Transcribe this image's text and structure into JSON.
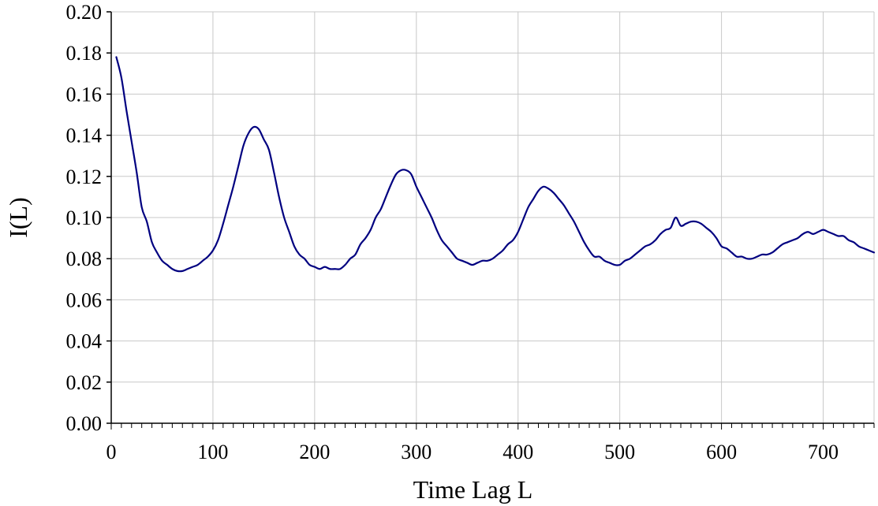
{
  "chart_data": {
    "type": "line",
    "title": "",
    "xlabel": "Time Lag L",
    "ylabel": "I(L)",
    "xlim": [
      0,
      750
    ],
    "ylim": [
      0.0,
      0.2
    ],
    "x_ticks": [
      0,
      100,
      200,
      300,
      400,
      500,
      600,
      700
    ],
    "x_tick_labels": [
      "0",
      "100",
      "200",
      "300",
      "400",
      "500",
      "600",
      "700"
    ],
    "x_minor_tick_step": 10,
    "y_ticks": [
      0.0,
      0.02,
      0.04,
      0.06,
      0.08,
      0.1,
      0.12,
      0.14,
      0.16,
      0.18,
      0.2
    ],
    "y_tick_labels": [
      "0.00",
      "0.02",
      "0.04",
      "0.06",
      "0.08",
      "0.10",
      "0.12",
      "0.14",
      "0.16",
      "0.18",
      "0.20"
    ],
    "grid": true,
    "legend": "none",
    "colors": {
      "series": "#000080",
      "grid": "#c8c8c8",
      "axis": "#000000"
    },
    "series": [
      {
        "x": [
          5,
          10,
          15,
          20,
          25,
          30,
          35,
          40,
          45,
          50,
          55,
          60,
          65,
          70,
          75,
          80,
          85,
          90,
          95,
          100,
          105,
          110,
          115,
          120,
          125,
          130,
          135,
          140,
          145,
          150,
          155,
          160,
          165,
          170,
          175,
          180,
          185,
          190,
          195,
          200,
          205,
          210,
          215,
          220,
          225,
          230,
          235,
          240,
          245,
          250,
          255,
          260,
          265,
          270,
          275,
          280,
          285,
          290,
          295,
          300,
          305,
          310,
          315,
          320,
          325,
          330,
          335,
          340,
          345,
          350,
          355,
          360,
          365,
          370,
          375,
          380,
          385,
          390,
          395,
          400,
          405,
          410,
          415,
          420,
          425,
          430,
          435,
          440,
          445,
          450,
          455,
          460,
          465,
          470,
          475,
          480,
          485,
          490,
          495,
          500,
          505,
          510,
          515,
          520,
          525,
          530,
          535,
          540,
          545,
          550,
          555,
          560,
          565,
          570,
          575,
          580,
          585,
          590,
          595,
          600,
          605,
          610,
          615,
          620,
          625,
          630,
          635,
          640,
          645,
          650,
          655,
          660,
          665,
          670,
          675,
          680,
          685,
          690,
          695,
          700,
          705,
          710,
          715,
          720,
          725,
          730,
          735,
          740,
          745,
          750
        ],
        "values": [
          0.178,
          0.168,
          0.152,
          0.137,
          0.122,
          0.105,
          0.098,
          0.088,
          0.083,
          0.079,
          0.077,
          0.075,
          0.074,
          0.074,
          0.075,
          0.076,
          0.077,
          0.079,
          0.081,
          0.084,
          0.089,
          0.097,
          0.106,
          0.115,
          0.125,
          0.135,
          0.141,
          0.144,
          0.143,
          0.138,
          0.133,
          0.122,
          0.11,
          0.1,
          0.093,
          0.086,
          0.082,
          0.08,
          0.077,
          0.076,
          0.075,
          0.076,
          0.075,
          0.075,
          0.075,
          0.077,
          0.08,
          0.082,
          0.087,
          0.09,
          0.094,
          0.1,
          0.104,
          0.11,
          0.116,
          0.121,
          0.123,
          0.123,
          0.121,
          0.115,
          0.11,
          0.105,
          0.1,
          0.094,
          0.089,
          0.086,
          0.083,
          0.08,
          0.079,
          0.078,
          0.077,
          0.078,
          0.079,
          0.079,
          0.08,
          0.082,
          0.084,
          0.087,
          0.089,
          0.093,
          0.099,
          0.105,
          0.109,
          0.113,
          0.115,
          0.114,
          0.112,
          0.109,
          0.106,
          0.102,
          0.098,
          0.093,
          0.088,
          0.084,
          0.081,
          0.081,
          0.079,
          0.078,
          0.077,
          0.077,
          0.079,
          0.08,
          0.082,
          0.084,
          0.086,
          0.087,
          0.089,
          0.092,
          0.094,
          0.095,
          0.1,
          0.096,
          0.097,
          0.098,
          0.098,
          0.097,
          0.095,
          0.093,
          0.09,
          0.086,
          0.085,
          0.083,
          0.081,
          0.081,
          0.08,
          0.08,
          0.081,
          0.082,
          0.082,
          0.083,
          0.085,
          0.087,
          0.088,
          0.089,
          0.09,
          0.092,
          0.093,
          0.092,
          0.093,
          0.094,
          0.093,
          0.092,
          0.091,
          0.091,
          0.089,
          0.088,
          0.086,
          0.085,
          0.084,
          0.083
        ]
      }
    ]
  }
}
